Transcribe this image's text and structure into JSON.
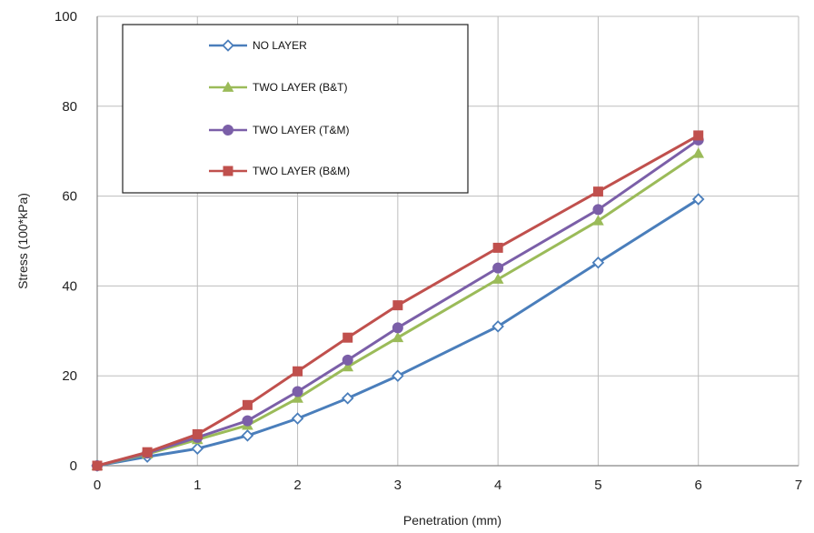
{
  "chart_data": {
    "type": "line",
    "xlabel": "Penetration  (mm)",
    "ylabel": "Stress (100*kPa)",
    "xlim": [
      0,
      7
    ],
    "ylim": [
      0,
      100
    ],
    "x_ticks": [
      0,
      1,
      2,
      3,
      4,
      5,
      6,
      7
    ],
    "y_ticks": [
      0,
      20,
      40,
      60,
      80,
      100
    ],
    "grid": true,
    "legend_position": "top-left",
    "series": [
      {
        "name": "NO LAYER",
        "color": "#4a7ebb",
        "marker": "diamond-open",
        "x": [
          0,
          0.5,
          1,
          1.5,
          2,
          2.5,
          3,
          4,
          5,
          6
        ],
        "y": [
          0,
          2,
          3.8,
          6.7,
          10.5,
          15,
          20,
          31,
          45.2,
          59.3
        ]
      },
      {
        "name": "TWO LAYER (B&T)",
        "color": "#9bbb59",
        "marker": "triangle",
        "x": [
          0,
          0.5,
          1,
          1.5,
          2,
          2.5,
          3,
          4,
          5,
          6
        ],
        "y": [
          0,
          2.6,
          5.8,
          9,
          15,
          22,
          28.5,
          41.5,
          54.5,
          69.5
        ]
      },
      {
        "name": "TWO LAYER (T&M)",
        "color": "#7b5fa8",
        "marker": "circle",
        "x": [
          0,
          0.5,
          1,
          1.5,
          2,
          2.5,
          3,
          4,
          5,
          6
        ],
        "y": [
          0,
          2.8,
          6.3,
          10,
          16.5,
          23.5,
          30.7,
          44,
          57,
          72.5
        ]
      },
      {
        "name": "TWO LAYER (B&M)",
        "color": "#c0504d",
        "marker": "square",
        "x": [
          0,
          0.5,
          1,
          1.5,
          2,
          2.5,
          3,
          4,
          5,
          6
        ],
        "y": [
          0,
          3,
          7,
          13.5,
          21,
          28.5,
          35.7,
          48.5,
          61,
          73.5
        ]
      }
    ]
  }
}
